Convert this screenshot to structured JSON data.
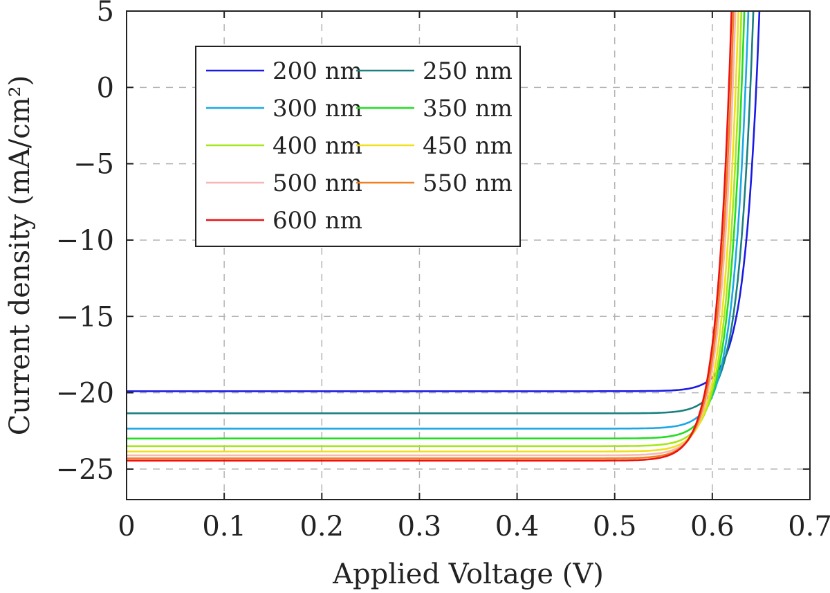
{
  "chart_data": {
    "type": "line",
    "title": "",
    "xlabel": "Applied Voltage (V)",
    "ylabel": "Current density (mA/cm²)",
    "xlim": [
      0,
      0.7
    ],
    "ylim": [
      -27,
      5
    ],
    "grid": true,
    "legend_position": "top-left",
    "x_ticks": [
      0,
      0.1,
      0.2,
      0.3,
      0.4,
      0.5,
      0.6,
      0.7
    ],
    "x_tick_labels": [
      "0",
      "0.1",
      "0.2",
      "0.3",
      "0.4",
      "0.5",
      "0.6",
      "0.7"
    ],
    "y_ticks": [
      5,
      0,
      -5,
      -10,
      -15,
      -20,
      -25
    ],
    "y_tick_labels": [
      "5",
      "0",
      "−5",
      "−10",
      "−15",
      "−20",
      "−25"
    ],
    "series": [
      {
        "name": "200 nm",
        "color": "#1a1ae6",
        "jsc": 19.9,
        "voc": 0.645
      },
      {
        "name": "250 nm",
        "color": "#1b7f7f",
        "jsc": 21.35,
        "voc": 0.639
      },
      {
        "name": "300 nm",
        "color": "#1aa7e6",
        "jsc": 22.35,
        "voc": 0.634
      },
      {
        "name": "350 nm",
        "color": "#22dd22",
        "jsc": 23.0,
        "voc": 0.63
      },
      {
        "name": "400 nm",
        "color": "#a6e61a",
        "jsc": 23.5,
        "voc": 0.627
      },
      {
        "name": "450 nm",
        "color": "#f0e01a",
        "jsc": 23.85,
        "voc": 0.624
      },
      {
        "name": "500 nm",
        "color": "#f5b6b6",
        "jsc": 24.1,
        "voc": 0.621
      },
      {
        "name": "550 nm",
        "color": "#ee8022",
        "jsc": 24.3,
        "voc": 0.619
      },
      {
        "name": "600 nm",
        "color": "#ee1111",
        "jsc": 24.45,
        "voc": 0.617
      }
    ]
  }
}
